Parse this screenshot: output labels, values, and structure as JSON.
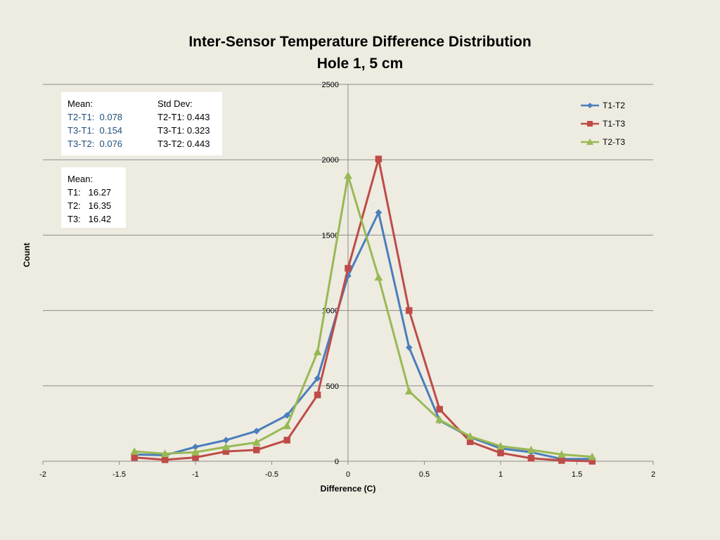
{
  "chart_data": {
    "type": "line",
    "title": "Inter-Sensor  Temperature Difference Distribution",
    "subtitle": "Hole 1, 5 cm",
    "xlabel": "Difference (C)",
    "ylabel": "Count",
    "xlim": [
      -2,
      2
    ],
    "ylim": [
      0,
      2500
    ],
    "x_ticks": [
      "-2",
      "-1.5",
      "-1",
      "-0.5",
      "0",
      "0.5",
      "1",
      "1.5",
      "2"
    ],
    "y_ticks": [
      "0",
      "500",
      "1000",
      "1500",
      "2000",
      "2500"
    ],
    "grid": "horizontal",
    "legend_position": "top-right",
    "series": [
      {
        "name": "T1-T2",
        "color": "#4a7ebb",
        "marker": "diamond",
        "x": [
          -1.4,
          -1.2,
          -1.0,
          -0.8,
          -0.6,
          -0.4,
          -0.2,
          0.0,
          0.2,
          0.4,
          0.6,
          0.8,
          1.0,
          1.2,
          1.4,
          1.6
        ],
        "y": [
          45,
          40,
          95,
          140,
          200,
          305,
          550,
          1230,
          1650,
          755,
          270,
          160,
          85,
          60,
          15,
          15
        ]
      },
      {
        "name": "T1-T3",
        "color": "#be4b48",
        "marker": "square",
        "x": [
          -1.4,
          -1.2,
          -1.0,
          -0.8,
          -0.6,
          -0.4,
          -0.2,
          0.0,
          0.2,
          0.4,
          0.6,
          0.8,
          1.0,
          1.2,
          1.4,
          1.6
        ],
        "y": [
          25,
          10,
          25,
          65,
          75,
          140,
          440,
          1280,
          2005,
          1000,
          345,
          130,
          55,
          20,
          5,
          0
        ]
      },
      {
        "name": "T2-T3",
        "color": "#98b954",
        "marker": "triangle",
        "x": [
          -1.4,
          -1.2,
          -1.0,
          -0.8,
          -0.6,
          -0.4,
          -0.2,
          0.0,
          0.2,
          0.4,
          0.6,
          0.8,
          1.0,
          1.2,
          1.4,
          1.6
        ],
        "y": [
          65,
          50,
          60,
          95,
          125,
          235,
          725,
          1895,
          1220,
          465,
          275,
          165,
          100,
          75,
          45,
          30
        ]
      }
    ]
  },
  "stats_box": {
    "mean_header": "Mean:",
    "std_header": "Std Dev:",
    "means": [
      "T2-T1:  0.078",
      "T3-T1:  0.154",
      "T3-T2:  0.076"
    ],
    "stds": [
      "T2-T1: 0.443",
      "T3-T1: 0.323",
      "T3-T2: 0.443"
    ],
    "mean_color": "#1f4e79"
  },
  "means_box": {
    "header": "Mean:",
    "rows": [
      "T1:   16.27",
      "T2:   16.35",
      "T3:   16.42"
    ]
  }
}
